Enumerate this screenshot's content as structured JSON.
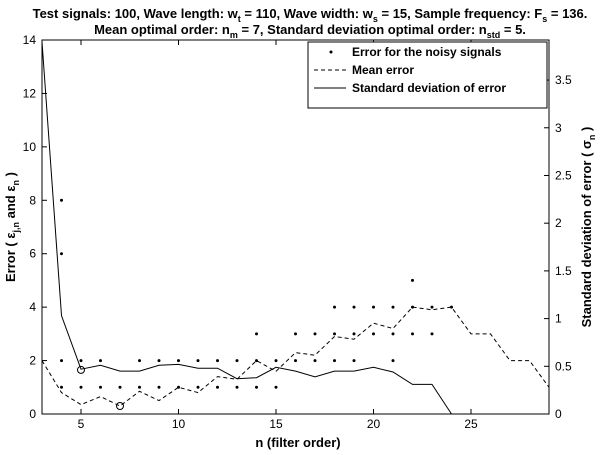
{
  "title": {
    "line1": {
      "a": "Test signals: 100, Wave length: w",
      "a_sub": "t",
      "b": " = 110, Wave width: w",
      "b_sub": "s",
      "c": " = 15, Sample frequency: F",
      "c_sub": "s",
      "d": " = 136."
    },
    "line2": {
      "a": "Mean optimal order: n",
      "a_sub": "m",
      "b": " = 7, Standard deviation optimal order: n",
      "b_sub": "std",
      "c": " = 5."
    }
  },
  "axes": {
    "xlabel": "n (filter order)",
    "ylabel_left": {
      "a": "Error ( ε",
      "a_sub": "j,n",
      "b": " and ε",
      "b_sub": "n",
      "c": " )"
    },
    "ylabel_right": {
      "a": "Standard deviation of error ( σ",
      "a_sub": "n",
      "b": " )"
    },
    "x_tick_labels": [
      "5",
      "10",
      "15",
      "20",
      "25"
    ],
    "y_left_tick_labels": [
      "0",
      "2",
      "4",
      "6",
      "8",
      "10",
      "12",
      "14"
    ],
    "y_right_tick_labels": [
      "0",
      "0.5",
      "1",
      "1.5",
      "2",
      "2.5",
      "3",
      "3.5"
    ]
  },
  "legend": {
    "items": [
      "Error for the noisy signals",
      "Mean error",
      "Standard deviation of error"
    ]
  },
  "chart_data": {
    "type": "line",
    "xlim": [
      3,
      29
    ],
    "ylim_left": [
      0,
      14
    ],
    "ylim_right": [
      0,
      3.92
    ],
    "x_ticks": [
      5,
      10,
      15,
      20,
      25
    ],
    "y_left_ticks": [
      0,
      2,
      4,
      6,
      8,
      10,
      12,
      14
    ],
    "y_right_ticks": [
      0,
      0.5,
      1,
      1.5,
      2,
      2.5,
      3,
      3.5
    ],
    "grid": false,
    "legend_position": "top-right",
    "scatter": {
      "name": "Error for the noisy signals",
      "axis": "left",
      "points": [
        [
          4,
          8
        ],
        [
          4,
          6
        ],
        [
          4,
          2
        ],
        [
          4,
          1
        ],
        [
          5,
          2
        ],
        [
          5,
          1
        ],
        [
          6,
          2
        ],
        [
          6,
          1
        ],
        [
          7,
          1
        ],
        [
          8,
          2
        ],
        [
          8,
          1
        ],
        [
          9,
          2
        ],
        [
          9,
          1
        ],
        [
          10,
          2
        ],
        [
          10,
          1
        ],
        [
          11,
          2
        ],
        [
          11,
          1
        ],
        [
          12,
          2
        ],
        [
          12,
          1
        ],
        [
          13,
          2
        ],
        [
          13,
          1
        ],
        [
          14,
          3
        ],
        [
          14,
          2
        ],
        [
          14,
          1
        ],
        [
          15,
          2
        ],
        [
          15,
          1
        ],
        [
          16,
          3
        ],
        [
          16,
          2
        ],
        [
          17,
          3
        ],
        [
          17,
          2
        ],
        [
          18,
          4
        ],
        [
          18,
          3
        ],
        [
          18,
          2
        ],
        [
          19,
          4
        ],
        [
          19,
          3
        ],
        [
          19,
          2
        ],
        [
          20,
          4
        ],
        [
          20,
          3
        ],
        [
          21,
          4
        ],
        [
          21,
          3
        ],
        [
          21,
          2
        ],
        [
          22,
          5
        ],
        [
          22,
          4
        ],
        [
          22,
          3
        ],
        [
          23,
          4
        ],
        [
          23,
          3
        ],
        [
          24,
          4
        ]
      ]
    },
    "series": [
      {
        "name": "Mean error",
        "axis": "left",
        "style": "dashed",
        "x": [
          3,
          4,
          5,
          6,
          7,
          8,
          9,
          10,
          11,
          12,
          13,
          14,
          15,
          16,
          17,
          18,
          19,
          20,
          21,
          22,
          23,
          24,
          25,
          26,
          27,
          28,
          29
        ],
        "y": [
          2.0,
          0.8,
          0.35,
          0.65,
          0.3,
          0.85,
          0.5,
          1.0,
          0.8,
          1.4,
          1.3,
          2.0,
          1.6,
          2.3,
          2.2,
          2.9,
          2.8,
          3.4,
          3.2,
          4.0,
          3.9,
          4.0,
          3.0,
          3.0,
          2.0,
          2.0,
          1.0
        ]
      },
      {
        "name": "Standard deviation of error",
        "axis": "right",
        "style": "solid",
        "x": [
          3,
          4,
          5,
          6,
          7,
          8,
          9,
          10,
          11,
          12,
          13,
          14,
          15,
          16,
          17,
          18,
          19,
          20,
          21,
          22,
          23,
          24
        ],
        "y": [
          3.9,
          1.03,
          0.47,
          0.51,
          0.45,
          0.45,
          0.51,
          0.52,
          0.48,
          0.48,
          0.37,
          0.38,
          0.49,
          0.45,
          0.39,
          0.45,
          0.45,
          0.49,
          0.44,
          0.31,
          0.31,
          0.0
        ]
      }
    ],
    "markers": [
      {
        "label": "n_std",
        "axis": "left",
        "x": 5,
        "y": 1.65
      },
      {
        "label": "n_m",
        "axis": "left",
        "x": 7,
        "y": 0.3
      }
    ]
  }
}
